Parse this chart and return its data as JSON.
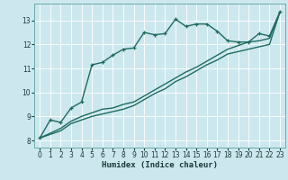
{
  "title": "",
  "xlabel": "Humidex (Indice chaleur)",
  "bg_color": "#cce8ee",
  "grid_color": "#b0d8e0",
  "line_color": "#1e6b60",
  "xlim": [
    -0.5,
    23.5
  ],
  "ylim": [
    7.7,
    13.7
  ],
  "xticks": [
    0,
    1,
    2,
    3,
    4,
    5,
    6,
    7,
    8,
    9,
    10,
    11,
    12,
    13,
    14,
    15,
    16,
    17,
    18,
    19,
    20,
    21,
    22,
    23
  ],
  "yticks": [
    8,
    9,
    10,
    11,
    12,
    13
  ],
  "line1_x": [
    0,
    1,
    2,
    3,
    4,
    5,
    6,
    7,
    8,
    9,
    10,
    11,
    12,
    13,
    14,
    15,
    16,
    17,
    18,
    19,
    20,
    21,
    22,
    23
  ],
  "line1_y": [
    8.1,
    8.85,
    8.75,
    9.35,
    9.6,
    11.15,
    11.25,
    11.55,
    11.8,
    11.85,
    12.5,
    12.4,
    12.45,
    13.05,
    12.75,
    12.85,
    12.85,
    12.55,
    12.15,
    12.1,
    12.1,
    12.45,
    12.35,
    13.35
  ],
  "line2_x": [
    0,
    2,
    3,
    4,
    5,
    6,
    7,
    8,
    9,
    10,
    11,
    12,
    13,
    14,
    15,
    16,
    17,
    18,
    19,
    20,
    21,
    22,
    23
  ],
  "line2_y": [
    8.1,
    8.5,
    8.8,
    9.0,
    9.15,
    9.3,
    9.35,
    9.5,
    9.6,
    9.85,
    10.1,
    10.35,
    10.6,
    10.85,
    11.05,
    11.3,
    11.55,
    11.8,
    11.95,
    12.1,
    12.15,
    12.25,
    13.35
  ],
  "line3_x": [
    0,
    2,
    3,
    4,
    5,
    6,
    7,
    8,
    9,
    10,
    11,
    12,
    13,
    14,
    15,
    16,
    17,
    18,
    19,
    20,
    21,
    22,
    23
  ],
  "line3_y": [
    8.1,
    8.4,
    8.7,
    8.85,
    9.0,
    9.1,
    9.2,
    9.3,
    9.45,
    9.7,
    9.95,
    10.15,
    10.45,
    10.65,
    10.9,
    11.15,
    11.35,
    11.6,
    11.7,
    11.8,
    11.9,
    12.0,
    13.35
  ]
}
